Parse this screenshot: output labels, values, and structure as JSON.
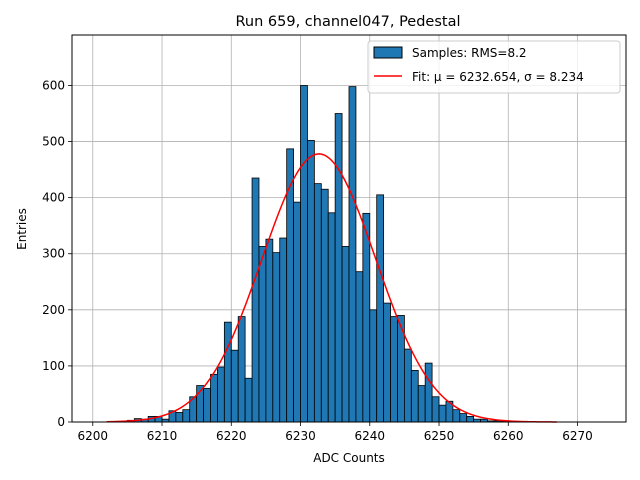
{
  "chart_data": {
    "type": "bar",
    "title": "Run 659, channel047, Pedestal",
    "xlabel": "ADC Counts",
    "ylabel": "Entries",
    "xlim": [
      6197,
      6277
    ],
    "ylim": [
      0,
      690
    ],
    "xticks": [
      6200,
      6210,
      6220,
      6230,
      6240,
      6250,
      6260,
      6270
    ],
    "yticks": [
      0,
      100,
      200,
      300,
      400,
      500,
      600
    ],
    "grid": true,
    "legend_position": "top-right",
    "bin_width": 1,
    "histogram": {
      "name": "Samples: RMS=8.2",
      "color": "#1f77b4",
      "edgecolor": "#000000",
      "bin_starts": [
        6203,
        6204,
        6205,
        6206,
        6207,
        6208,
        6209,
        6210,
        6211,
        6212,
        6213,
        6214,
        6215,
        6216,
        6217,
        6218,
        6219,
        6220,
        6221,
        6222,
        6223,
        6224,
        6225,
        6226,
        6227,
        6228,
        6229,
        6230,
        6231,
        6232,
        6233,
        6234,
        6235,
        6236,
        6237,
        6238,
        6239,
        6240,
        6241,
        6242,
        6243,
        6244,
        6245,
        6246,
        6247,
        6248,
        6249,
        6250,
        6251,
        6252,
        6253,
        6254,
        6255,
        6256,
        6257,
        6258,
        6259,
        6260,
        6261,
        6262
      ],
      "values": [
        1,
        1,
        3,
        6,
        5,
        10,
        10,
        5,
        20,
        17,
        22,
        45,
        65,
        60,
        85,
        98,
        178,
        128,
        188,
        78,
        435,
        313,
        326,
        302,
        328,
        487,
        392,
        600,
        502,
        425,
        415,
        373,
        550,
        313,
        598,
        268,
        372,
        200,
        405,
        212,
        188,
        190,
        130,
        92,
        65,
        105,
        45,
        30,
        37,
        22,
        15,
        10,
        5,
        5,
        2,
        2,
        1,
        1,
        0,
        1
      ]
    },
    "fit": {
      "name": "Fit: μ = 6232.654, σ = 8.234",
      "color": "#ff0000",
      "mu": 6232.654,
      "sigma": 8.234,
      "amplitude": 478,
      "x_range": [
        6202,
        6267
      ]
    }
  }
}
